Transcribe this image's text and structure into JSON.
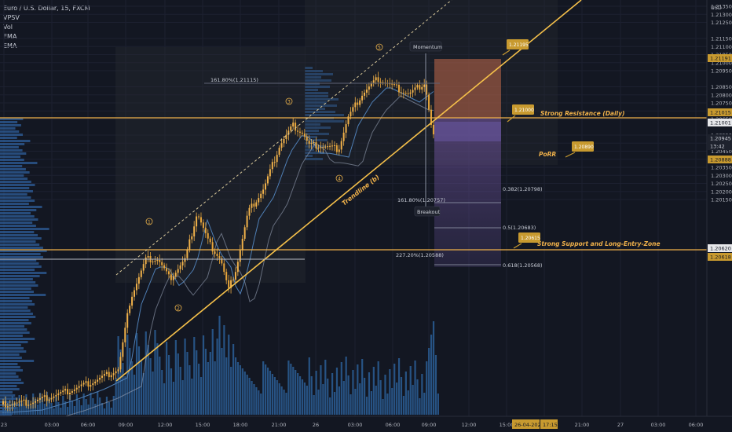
{
  "legend": {
    "symbol_title": "Euro / U.S. Dollar, 15, FXCM",
    "indicators": [
      "VPSV",
      "Vol",
      "EMA",
      "EMA"
    ]
  },
  "price_axis": {
    "unit": "USD",
    "ticks": [
      "1.21350",
      "1.21300",
      "1.21250",
      "1.21150",
      "1.21100",
      "1.21050",
      "1.21000",
      "1.20950",
      "1.20850",
      "1.20800",
      "1.20750",
      "1.20700",
      "1.20650",
      "1.20550",
      "1.20500",
      "1.20450",
      "1.20400",
      "1.20350",
      "1.20300",
      "1.20250",
      "1.20200",
      "1.20150"
    ],
    "tags": [
      {
        "text": "1.21191",
        "kind": "gold"
      },
      {
        "text": "1.21015",
        "kind": "gold"
      },
      {
        "text": "1.21001",
        "kind": "white"
      },
      {
        "text": "1.20945",
        "kind": "last"
      },
      {
        "text": "13:42",
        "kind": "last"
      },
      {
        "text": "1.20888",
        "kind": "gold"
      },
      {
        "text": "1.20620",
        "kind": "white"
      },
      {
        "text": "1.20618",
        "kind": "gold"
      }
    ]
  },
  "time_axis": {
    "ticks": [
      "23",
      "03:00",
      "06:00",
      "09:00",
      "12:00",
      "15:00",
      "18:00",
      "21:00",
      "26",
      "03:00",
      "06:00",
      "09:00",
      "12:00",
      "15:00",
      "18:00",
      "21:00",
      "27",
      "03:00",
      "06:00"
    ],
    "date_tag": "26-04-2021",
    "time_tag": "17:15"
  },
  "annotations": {
    "strong_resistance": "Strong Resistance (Daily)",
    "strong_support": "Strong Support and Long-Entry-Zone",
    "trendline": "Trendline (b)",
    "porr": "PoRR",
    "momentum": "Momentum",
    "breakout": "Breakout",
    "callouts": [
      "1.21195",
      "1.21000",
      "1.20890",
      "1.20615"
    ],
    "waves": [
      "1",
      "2",
      "3",
      "4",
      "5"
    ],
    "fib_ext": [
      "161.80%(1.21115)",
      "161.80%(1.20757)",
      "227.20%(1.20588)"
    ],
    "fib_ret": [
      "0.382(1.20798)",
      "0.5(1.20683)",
      "0.618(1.20568)"
    ]
  },
  "colors": {
    "background": "#131722",
    "up_candle": "#f0b14a",
    "down_candle": "#e7a53a",
    "resistance_line": "#f0b14a",
    "trendline": "#f5c04a",
    "volume_profile": "#2f5f9b",
    "ema_fast": "#4f7fb5",
    "ema_slow": "#9aa4b8",
    "volume": "#2a5a8f",
    "callout": "#c89a2f"
  }
}
